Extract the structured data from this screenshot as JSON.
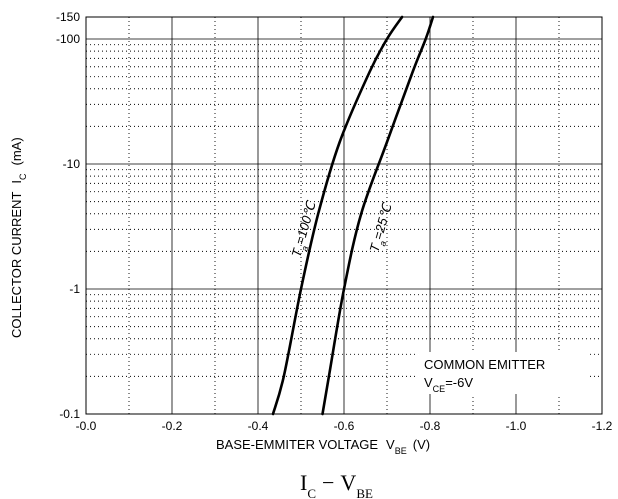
{
  "chart_data": {
    "type": "line",
    "title": "I",
    "title_sub": "C",
    "title_dash": "−",
    "title_v": "V",
    "title_v_sub": "BE",
    "xlabel": "BASE-EMMITER VOLTAGE",
    "xlabel_sym": "V",
    "xlabel_sym_sub": "BE",
    "xlabel_unit": "(V)",
    "ylabel": "COLLECTOR CURRENT",
    "ylabel_sym": "I",
    "ylabel_sym_sub": "C",
    "ylabel_unit": "(mA)",
    "xlim": [
      0.0,
      -1.2
    ],
    "ylim": [
      -0.1,
      -150
    ],
    "yscale": "log",
    "grid": true,
    "x_ticks": [
      {
        "value": 0.0,
        "label": "-0.0"
      },
      {
        "value": -0.2,
        "label": "-0.2"
      },
      {
        "value": -0.4,
        "label": "-0.4"
      },
      {
        "value": -0.6,
        "label": "-0.6"
      },
      {
        "value": -0.8,
        "label": "-0.8"
      },
      {
        "value": -1.0,
        "label": "-1.0"
      },
      {
        "value": -1.2,
        "label": "-1.2"
      }
    ],
    "y_ticks": [
      {
        "value": -0.1,
        "label": "-0.1"
      },
      {
        "value": -1,
        "label": "-1"
      },
      {
        "value": -10,
        "label": "-10"
      },
      {
        "value": -100,
        "label": "-100"
      },
      {
        "value": -150,
        "label": "-150"
      }
    ],
    "series": [
      {
        "name": "Ta=100℃",
        "label_main": "T",
        "label_sub": "a",
        "label_rest": "=100℃",
        "x": [
          -0.435,
          -0.46,
          -0.5,
          -0.54,
          -0.59,
          -0.66,
          -0.7,
          -0.735
        ],
        "y": [
          -0.1,
          -0.2,
          -1,
          -4,
          -15,
          -55,
          -100,
          -150
        ]
      },
      {
        "name": "Ta=25℃",
        "label_main": "T",
        "label_sub": "a",
        "label_rest": "=25℃",
        "x": [
          -0.55,
          -0.565,
          -0.6,
          -0.64,
          -0.7,
          -0.76,
          -0.79,
          -0.807
        ],
        "y": [
          -0.1,
          -0.2,
          -1,
          -4,
          -15,
          -55,
          -100,
          -150
        ]
      }
    ],
    "annotation": {
      "line1": "COMMON EMITTER",
      "line2_sym": "V",
      "line2_sub": "CE",
      "line2_rest": "=-6V"
    }
  }
}
